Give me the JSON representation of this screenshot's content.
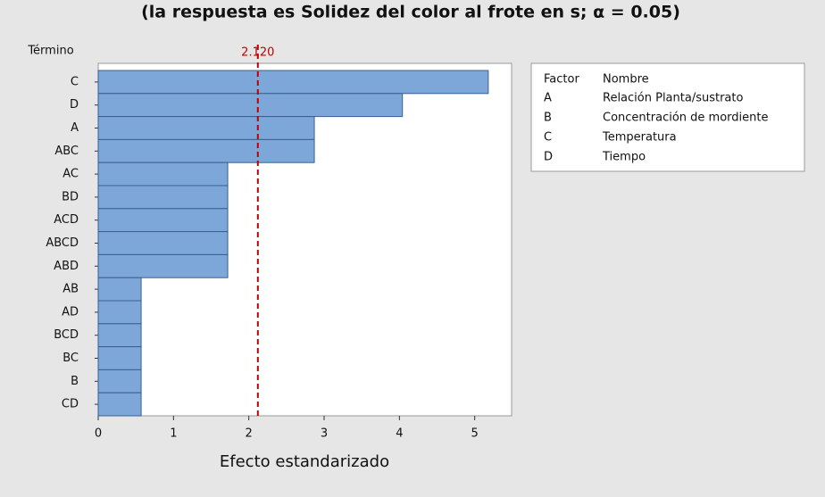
{
  "chart_data": {
    "type": "bar",
    "orientation": "horizontal",
    "title": "(la respuesta es Solidez del color al frote en s; α = 0.05)",
    "y_label": "Término",
    "x_label": "Efecto estandarizado",
    "categories": [
      "C",
      "D",
      "A",
      "ABC",
      "AC",
      "BD",
      "ACD",
      "ABCD",
      "ABD",
      "AB",
      "AD",
      "BCD",
      "BC",
      "B",
      "CD"
    ],
    "values": [
      5.18,
      4.04,
      2.87,
      2.87,
      1.72,
      1.72,
      1.72,
      1.72,
      1.72,
      0.57,
      0.57,
      0.57,
      0.57,
      0.57,
      0.57
    ],
    "color": "#7da7d9",
    "xlim": [
      0,
      5.49
    ],
    "xticks": [
      0,
      1,
      2,
      3,
      4,
      5
    ],
    "reference_line": {
      "value": 2.12,
      "label": "2.120",
      "color": "#c00000"
    },
    "legend_table": {
      "headers": [
        "Factor",
        "Nombre"
      ],
      "rows": [
        [
          "A",
          "Relación Planta/sustrato"
        ],
        [
          "B",
          "Concentración de mordiente"
        ],
        [
          "C",
          "Temperatura"
        ],
        [
          "D",
          "Tiempo"
        ]
      ]
    }
  }
}
